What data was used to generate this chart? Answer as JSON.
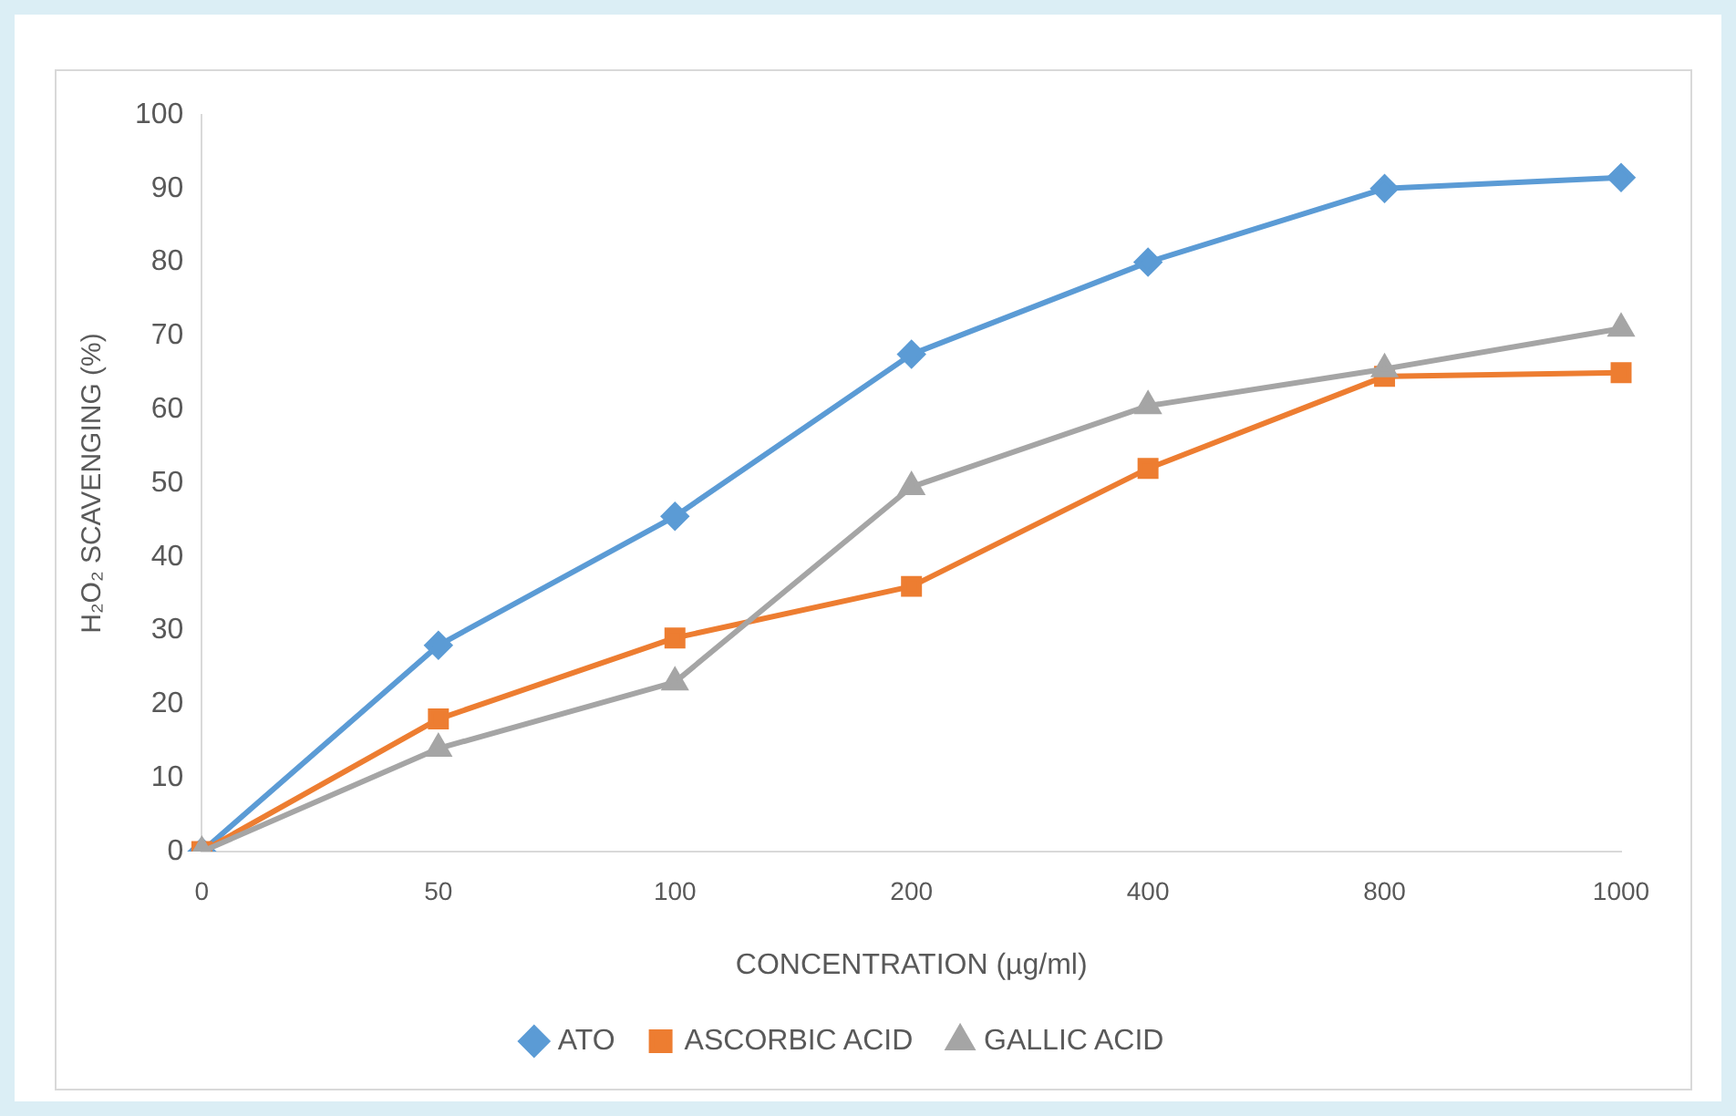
{
  "chart_data": {
    "type": "line",
    "xlabel": "CONCENTRATION (µg/ml)",
    "ylabel": "H₂O₂ SCAVENGING (%)",
    "categories": [
      "0",
      "50",
      "100",
      "200",
      "400",
      "800",
      "1000"
    ],
    "ylim": [
      0,
      100
    ],
    "yticks": [
      0,
      10,
      20,
      30,
      40,
      50,
      60,
      70,
      80,
      90,
      100
    ],
    "grid": false,
    "legend": "bottom",
    "series": [
      {
        "name": "ATO",
        "color": "#5b9bd5",
        "marker": "diamond",
        "values": [
          0,
          28,
          45.5,
          67.5,
          80,
          90,
          91.5
        ]
      },
      {
        "name": "ASCORBIC ACID",
        "color": "#ed7d31",
        "marker": "square",
        "values": [
          0,
          18,
          29,
          36,
          52,
          64.5,
          65
        ]
      },
      {
        "name": "GALLIC ACID",
        "color": "#a5a5a5",
        "marker": "triangle",
        "values": [
          0,
          14,
          23,
          49.5,
          60.5,
          65.5,
          71
        ]
      }
    ]
  }
}
